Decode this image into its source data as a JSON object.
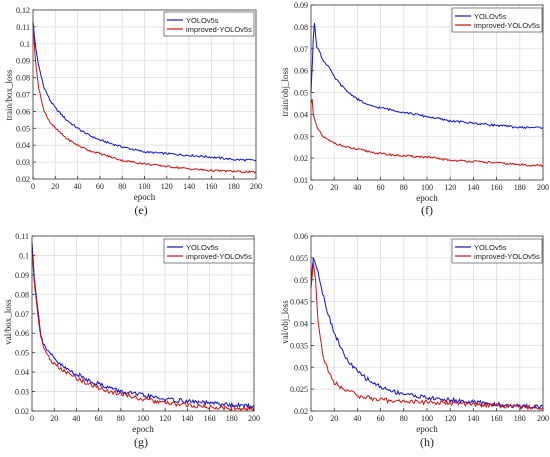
{
  "figure": {
    "colors": {
      "yolo": "#1010cc",
      "improved": "#cc1111",
      "grid": "#dddddd",
      "axis": "#333333"
    }
  },
  "chart_data": [
    {
      "type": "line",
      "panel_label": "(e)",
      "xlabel": "epoch",
      "ylabel": "train/box_loss",
      "xlim": [
        0,
        200
      ],
      "ylim": [
        0.02,
        0.12
      ],
      "xticks": [
        0,
        20,
        40,
        60,
        80,
        100,
        120,
        140,
        160,
        180,
        200
      ],
      "yticks": [
        0.02,
        0.03,
        0.04,
        0.05,
        0.06,
        0.07,
        0.08,
        0.09,
        0.1,
        0.11,
        0.12
      ],
      "ytick_labels": [
        "0.02",
        "0.03",
        "0.04",
        "0.05",
        "0.06",
        "0.07",
        "0.08",
        "0.09",
        "0.1",
        "0.11",
        "0.12"
      ],
      "grid": true,
      "legend": "top-right",
      "series": [
        {
          "name": "YOLOv5s",
          "x": [
            0,
            2,
            5,
            10,
            15,
            20,
            30,
            40,
            50,
            60,
            80,
            100,
            120,
            140,
            160,
            180,
            200
          ],
          "y": [
            0.113,
            0.1,
            0.087,
            0.074,
            0.067,
            0.062,
            0.055,
            0.05,
            0.046,
            0.043,
            0.039,
            0.036,
            0.035,
            0.034,
            0.033,
            0.0315,
            0.031
          ]
        },
        {
          "name": "improved-YOLOv5s",
          "x": [
            0,
            2,
            5,
            10,
            15,
            20,
            30,
            40,
            50,
            60,
            80,
            100,
            120,
            140,
            160,
            180,
            200
          ],
          "y": [
            0.113,
            0.092,
            0.074,
            0.06,
            0.054,
            0.05,
            0.044,
            0.04,
            0.037,
            0.035,
            0.031,
            0.029,
            0.0275,
            0.026,
            0.025,
            0.0245,
            0.024
          ]
        }
      ]
    },
    {
      "type": "line",
      "panel_label": "(f)",
      "xlabel": "epoch",
      "ylabel": "train/obj_loss",
      "xlim": [
        0,
        200
      ],
      "ylim": [
        0.01,
        0.09
      ],
      "xticks": [
        0,
        20,
        40,
        60,
        80,
        100,
        120,
        140,
        160,
        180,
        200
      ],
      "yticks": [
        0.01,
        0.02,
        0.03,
        0.04,
        0.05,
        0.06,
        0.07,
        0.08,
        0.09
      ],
      "ytick_labels": [
        "0.01",
        "0.02",
        "0.03",
        "0.04",
        "0.05",
        "0.06",
        "0.07",
        "0.08",
        "0.09"
      ],
      "grid": true,
      "legend": "top-right",
      "series": [
        {
          "name": "YOLOv5s",
          "x": [
            0,
            1,
            2,
            3,
            5,
            8,
            10,
            15,
            20,
            30,
            40,
            50,
            60,
            80,
            100,
            120,
            140,
            160,
            180,
            200
          ],
          "y": [
            0.05,
            0.062,
            0.075,
            0.082,
            0.071,
            0.068,
            0.065,
            0.062,
            0.057,
            0.051,
            0.047,
            0.044,
            0.043,
            0.041,
            0.039,
            0.037,
            0.036,
            0.035,
            0.034,
            0.034
          ]
        },
        {
          "name": "improved-YOLOv5s",
          "x": [
            0,
            1,
            2,
            5,
            10,
            15,
            20,
            30,
            40,
            50,
            60,
            80,
            100,
            120,
            140,
            160,
            180,
            200
          ],
          "y": [
            0.045,
            0.047,
            0.04,
            0.034,
            0.03,
            0.028,
            0.027,
            0.025,
            0.024,
            0.023,
            0.022,
            0.021,
            0.0205,
            0.019,
            0.0185,
            0.0178,
            0.017,
            0.0165
          ]
        }
      ]
    },
    {
      "type": "line",
      "panel_label": "(g)",
      "xlabel": "epoch",
      "ylabel": "val/box_loss",
      "xlim": [
        0,
        200
      ],
      "ylim": [
        0.02,
        0.11
      ],
      "xticks": [
        0,
        20,
        40,
        60,
        80,
        100,
        120,
        140,
        160,
        180,
        200
      ],
      "yticks": [
        0.02,
        0.03,
        0.04,
        0.05,
        0.06,
        0.07,
        0.08,
        0.09,
        0.1,
        0.11
      ],
      "ytick_labels": [
        "0.02",
        "0.03",
        "0.04",
        "0.05",
        "0.06",
        "0.07",
        "0.08",
        "0.09",
        "0.1",
        "0.11"
      ],
      "grid": true,
      "legend": "top-right",
      "series": [
        {
          "name": "YOLOv5s",
          "x": [
            0,
            2,
            5,
            8,
            10,
            15,
            20,
            25,
            30,
            40,
            50,
            60,
            70,
            80,
            100,
            120,
            140,
            160,
            180,
            200
          ],
          "y": [
            0.107,
            0.09,
            0.073,
            0.06,
            0.055,
            0.05,
            0.047,
            0.044,
            0.042,
            0.039,
            0.036,
            0.034,
            0.032,
            0.03,
            0.028,
            0.026,
            0.025,
            0.024,
            0.023,
            0.0225
          ]
        },
        {
          "name": "improved-YOLOv5s",
          "x": [
            0,
            2,
            5,
            8,
            10,
            15,
            20,
            25,
            30,
            40,
            50,
            60,
            70,
            80,
            100,
            120,
            140,
            160,
            180,
            200
          ],
          "y": [
            0.103,
            0.087,
            0.071,
            0.058,
            0.053,
            0.048,
            0.044,
            0.042,
            0.04,
            0.037,
            0.034,
            0.032,
            0.03,
            0.029,
            0.026,
            0.024,
            0.023,
            0.022,
            0.0215,
            0.021
          ]
        }
      ]
    },
    {
      "type": "line",
      "panel_label": "(h)",
      "xlabel": "epoch",
      "ylabel": "val/obj_loss",
      "xlim": [
        0,
        200
      ],
      "ylim": [
        0.02,
        0.06
      ],
      "xticks": [
        0,
        20,
        40,
        60,
        80,
        100,
        120,
        140,
        160,
        180,
        200
      ],
      "yticks": [
        0.02,
        0.025,
        0.03,
        0.035,
        0.04,
        0.045,
        0.05,
        0.055,
        0.06
      ],
      "ytick_labels": [
        "0.02",
        "0.025",
        "0.03",
        "0.035",
        "0.04",
        "0.045",
        "0.05",
        "0.055",
        "0.06"
      ],
      "grid": true,
      "legend": "top-right",
      "series": [
        {
          "name": "YOLOv5s",
          "x": [
            0,
            2,
            4,
            6,
            10,
            15,
            20,
            25,
            30,
            40,
            50,
            60,
            70,
            80,
            100,
            120,
            140,
            160,
            180,
            200
          ],
          "y": [
            0.05,
            0.055,
            0.054,
            0.052,
            0.047,
            0.042,
            0.038,
            0.035,
            0.032,
            0.029,
            0.027,
            0.0255,
            0.0245,
            0.024,
            0.023,
            0.0225,
            0.022,
            0.0215,
            0.021,
            0.021
          ]
        },
        {
          "name": "improved-YOLOv5s",
          "x": [
            0,
            2,
            4,
            6,
            10,
            15,
            20,
            25,
            30,
            40,
            50,
            60,
            80,
            100,
            120,
            140,
            160,
            180,
            200
          ],
          "y": [
            0.048,
            0.054,
            0.05,
            0.041,
            0.033,
            0.029,
            0.0265,
            0.0255,
            0.025,
            0.0235,
            0.023,
            0.0225,
            0.0222,
            0.022,
            0.0218,
            0.0215,
            0.0213,
            0.021,
            0.0208
          ]
        }
      ]
    }
  ]
}
